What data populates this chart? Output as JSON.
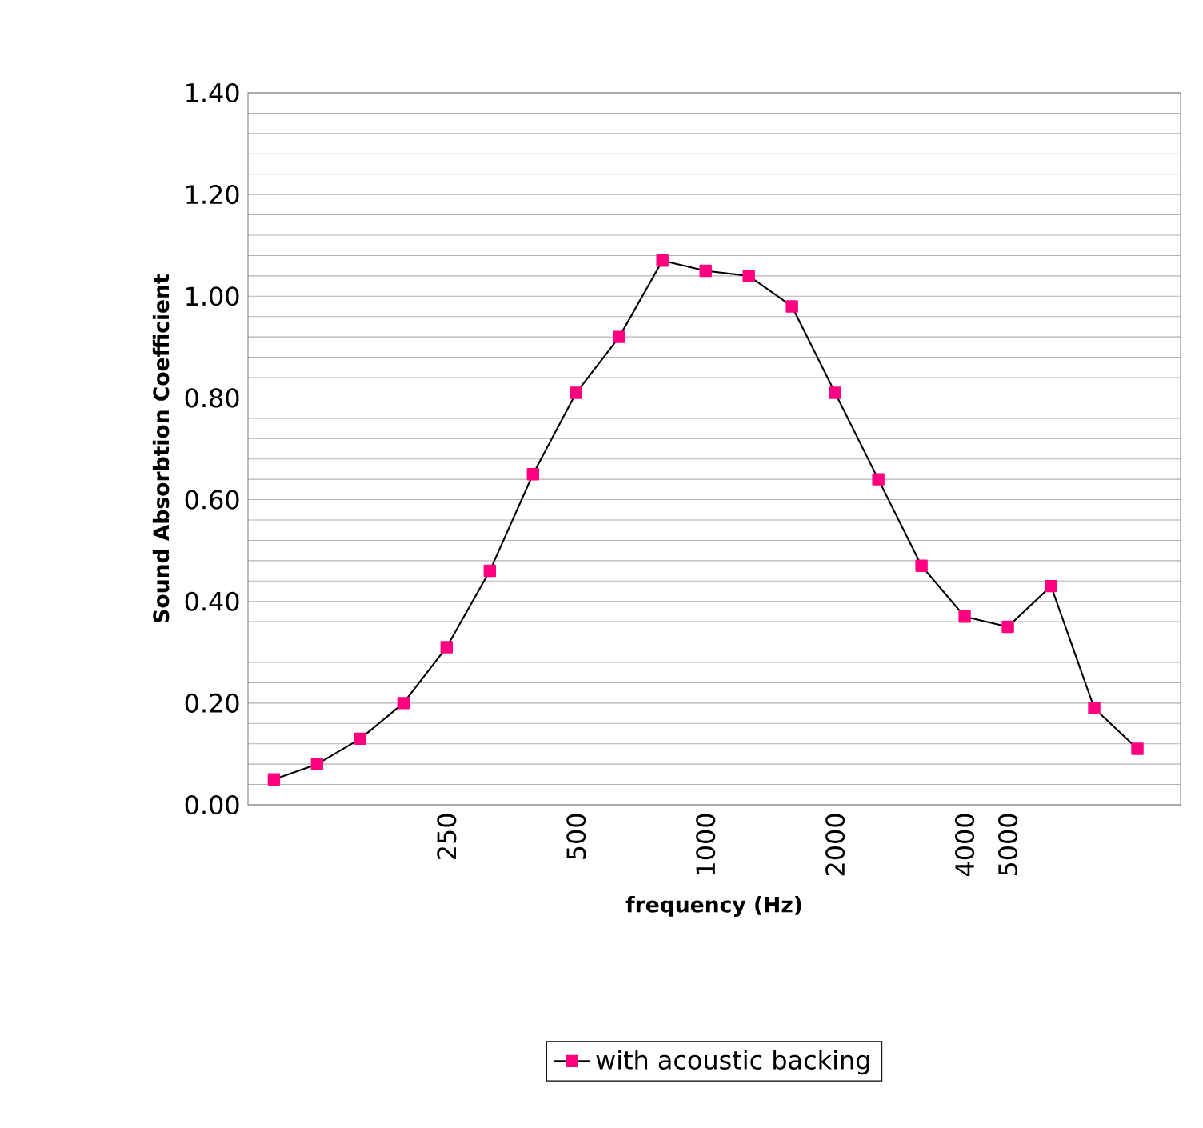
{
  "chart_data": {
    "type": "line",
    "xlabel": "frequency (Hz)",
    "ylabel": "Sound Absorbtion Coefficient",
    "categories": [
      null,
      null,
      null,
      null,
      "250",
      null,
      null,
      "500",
      null,
      null,
      "1000",
      null,
      null,
      "2000",
      null,
      null,
      "4000",
      "5000",
      null,
      null,
      null
    ],
    "series": [
      {
        "name": "with acoustic backing",
        "color": "#ff0080",
        "values": [
          0.05,
          0.08,
          0.13,
          0.2,
          0.31,
          0.46,
          0.65,
          0.81,
          0.92,
          1.07,
          1.05,
          1.04,
          0.98,
          0.81,
          0.64,
          0.47,
          0.37,
          0.35,
          0.43,
          0.19,
          0.11
        ]
      }
    ],
    "ylim": [
      0,
      1.4
    ],
    "yticks": [
      {
        "value": 0,
        "label": "0.00"
      },
      {
        "value": 0.2,
        "label": "0.20"
      },
      {
        "value": 0.4,
        "label": "0.40"
      },
      {
        "value": 0.6,
        "label": "0.60"
      },
      {
        "value": 0.8,
        "label": "0.80"
      },
      {
        "value": 1.0,
        "label": "1.00"
      },
      {
        "value": 1.2,
        "label": "1.20"
      },
      {
        "value": 1.4,
        "label": "1.40"
      }
    ],
    "grid": "y",
    "legend": "bottom",
    "marker": "square",
    "line_style": "solid"
  }
}
